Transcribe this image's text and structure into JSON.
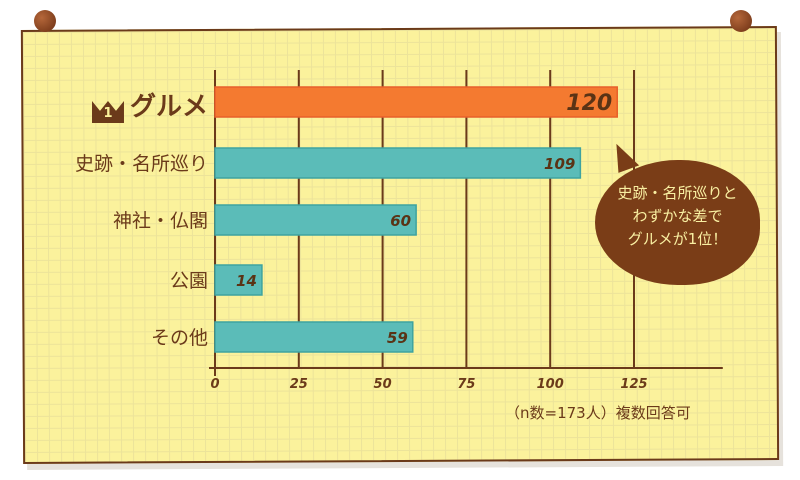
{
  "chart_data": {
    "type": "bar",
    "orientation": "horizontal",
    "categories": [
      "グルメ",
      "史跡・名所巡り",
      "神社・仏閣",
      "公園",
      "その他"
    ],
    "values": [
      120,
      109,
      60,
      14,
      59
    ],
    "xlim": [
      0,
      150
    ],
    "xticks": [
      "0",
      "25",
      "50",
      "75",
      "100",
      "125"
    ],
    "grid": true,
    "colors": {
      "highlight": "#f47a30",
      "normal": "#5bbcb8",
      "axis": "#6b3a1a"
    },
    "annotation": "史跡・名所巡りと わずかな差で グルメが1位！",
    "note": "（n数=173人）複数回答可",
    "rank_badge": "1"
  }
}
